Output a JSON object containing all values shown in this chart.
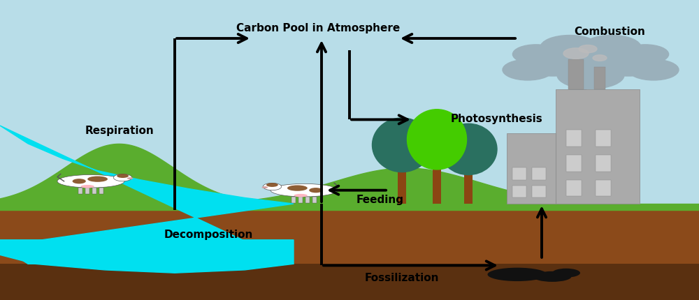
{
  "bg_sky_color": "#b8dde8",
  "bg_ground_color": "#8B4A1A",
  "bg_ground_dark_color": "#5a3010",
  "bg_grass_color": "#5aad2e",
  "bg_water_color": "#00e0f0",
  "cloud_color": "#9ab0bb",
  "factory_color": "#aaaaaa",
  "factory_window_color": "#cccccc",
  "tree_dark_color": "#2e7d6e",
  "tree_mid_color": "#1a6060",
  "tree_bright_color": "#44cc00",
  "tree_trunk_color": "#8B4513",
  "arrow_color": "#000000",
  "text_color": "#000000",
  "labels": {
    "carbon_pool": "Carbon Pool in Atmosphere",
    "combustion": "Combustion",
    "photosynthesis": "Photosynthesis",
    "respiration": "Respiration",
    "feeding": "Feeding",
    "decomposition": "Decomposition",
    "fossilization": "Fossilization"
  },
  "figsize": [
    10.0,
    4.31
  ],
  "dpi": 100
}
